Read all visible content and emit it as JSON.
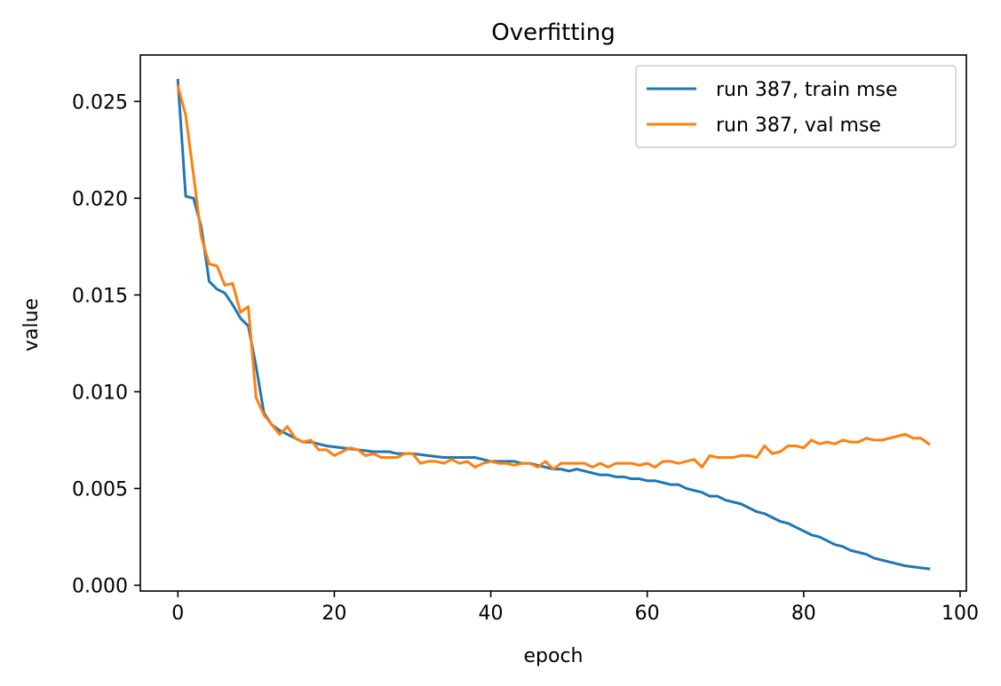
{
  "chart_data": {
    "type": "line",
    "title": "Overfitting",
    "xlabel": "epoch",
    "ylabel": "value",
    "xlim": [
      -4.8,
      100.8
    ],
    "ylim": [
      -0.0003,
      0.0274
    ],
    "xticks": [
      0,
      20,
      40,
      60,
      80,
      100
    ],
    "xtick_labels": [
      "0",
      "20",
      "40",
      "60",
      "80",
      "100"
    ],
    "yticks": [
      0.0,
      0.005,
      0.01,
      0.015,
      0.02,
      0.025
    ],
    "ytick_labels": [
      "0.000",
      "0.005",
      "0.010",
      "0.015",
      "0.020",
      "0.025"
    ],
    "grid": false,
    "legend_position": "top-right",
    "series": [
      {
        "name": "run 387, train mse",
        "color": "#1f77b4",
        "x": [
          0,
          1,
          2,
          3,
          4,
          5,
          6,
          7,
          8,
          9,
          10,
          11,
          12,
          13,
          14,
          15,
          16,
          17,
          18,
          19,
          20,
          21,
          22,
          23,
          24,
          25,
          26,
          27,
          28,
          29,
          30,
          31,
          32,
          33,
          34,
          35,
          36,
          37,
          38,
          39,
          40,
          41,
          42,
          43,
          44,
          45,
          46,
          47,
          48,
          49,
          50,
          51,
          52,
          53,
          54,
          55,
          56,
          57,
          58,
          59,
          60,
          61,
          62,
          63,
          64,
          65,
          66,
          67,
          68,
          69,
          70,
          71,
          72,
          73,
          74,
          75,
          76,
          77,
          78,
          79,
          80,
          81,
          82,
          83,
          84,
          85,
          86,
          87,
          88,
          89,
          90,
          91,
          92,
          93,
          94,
          95,
          96
        ],
        "values": [
          0.0261,
          0.0201,
          0.02,
          0.0185,
          0.0157,
          0.0153,
          0.0151,
          0.0145,
          0.0138,
          0.0134,
          0.0113,
          0.0089,
          0.0083,
          0.008,
          0.0078,
          0.0076,
          0.0074,
          0.0074,
          0.0073,
          0.0072,
          0.00715,
          0.0071,
          0.00705,
          0.007,
          0.00695,
          0.0069,
          0.0069,
          0.0069,
          0.0068,
          0.0068,
          0.0068,
          0.00675,
          0.0067,
          0.00665,
          0.0066,
          0.0066,
          0.0066,
          0.0066,
          0.0066,
          0.0065,
          0.0064,
          0.0064,
          0.0064,
          0.0064,
          0.0063,
          0.0063,
          0.0062,
          0.0061,
          0.006,
          0.006,
          0.0059,
          0.006,
          0.0059,
          0.0058,
          0.0057,
          0.0057,
          0.0056,
          0.0056,
          0.0055,
          0.0055,
          0.0054,
          0.0054,
          0.0053,
          0.0052,
          0.0052,
          0.005,
          0.0049,
          0.0048,
          0.0046,
          0.0046,
          0.0044,
          0.0043,
          0.0042,
          0.004,
          0.0038,
          0.0037,
          0.0035,
          0.0033,
          0.0032,
          0.003,
          0.0028,
          0.0026,
          0.0025,
          0.0023,
          0.0021,
          0.002,
          0.0018,
          0.0017,
          0.0016,
          0.0014,
          0.0013,
          0.0012,
          0.0011,
          0.001,
          0.00095,
          0.0009,
          0.00085
        ]
      },
      {
        "name": "run 387, val mse",
        "color": "#ff7f0e",
        "x": [
          0,
          1,
          2,
          3,
          4,
          5,
          6,
          7,
          8,
          9,
          10,
          11,
          12,
          13,
          14,
          15,
          16,
          17,
          18,
          19,
          20,
          21,
          22,
          23,
          24,
          25,
          26,
          27,
          28,
          29,
          30,
          31,
          32,
          33,
          34,
          35,
          36,
          37,
          38,
          39,
          40,
          41,
          42,
          43,
          44,
          45,
          46,
          47,
          48,
          49,
          50,
          51,
          52,
          53,
          54,
          55,
          56,
          57,
          58,
          59,
          60,
          61,
          62,
          63,
          64,
          65,
          66,
          67,
          68,
          69,
          70,
          71,
          72,
          73,
          74,
          75,
          76,
          77,
          78,
          79,
          80,
          81,
          82,
          83,
          84,
          85,
          86,
          87,
          88,
          89,
          90,
          91,
          92,
          93,
          94,
          95,
          96
        ],
        "values": [
          0.0258,
          0.0243,
          0.0212,
          0.018,
          0.0166,
          0.0165,
          0.0155,
          0.0156,
          0.0141,
          0.0144,
          0.0097,
          0.0088,
          0.0083,
          0.0078,
          0.0082,
          0.0076,
          0.0074,
          0.0075,
          0.007,
          0.007,
          0.0067,
          0.0069,
          0.0071,
          0.007,
          0.0067,
          0.0068,
          0.0066,
          0.0066,
          0.0066,
          0.0068,
          0.0068,
          0.0063,
          0.0064,
          0.0064,
          0.0063,
          0.0065,
          0.0063,
          0.0064,
          0.0061,
          0.0063,
          0.0064,
          0.0063,
          0.0063,
          0.0062,
          0.0063,
          0.0063,
          0.0061,
          0.0064,
          0.006,
          0.0063,
          0.0063,
          0.0063,
          0.0063,
          0.0061,
          0.0063,
          0.0061,
          0.0063,
          0.0063,
          0.0063,
          0.0062,
          0.0063,
          0.0061,
          0.0064,
          0.0064,
          0.0063,
          0.0064,
          0.0065,
          0.0061,
          0.0067,
          0.0066,
          0.0066,
          0.0066,
          0.0067,
          0.0067,
          0.0066,
          0.0072,
          0.0068,
          0.0069,
          0.0072,
          0.0072,
          0.0071,
          0.0075,
          0.0073,
          0.0074,
          0.0073,
          0.0075,
          0.0074,
          0.0074,
          0.0076,
          0.0075,
          0.0075,
          0.0076,
          0.0077,
          0.0078,
          0.0076,
          0.0076,
          0.0073
        ]
      }
    ]
  }
}
